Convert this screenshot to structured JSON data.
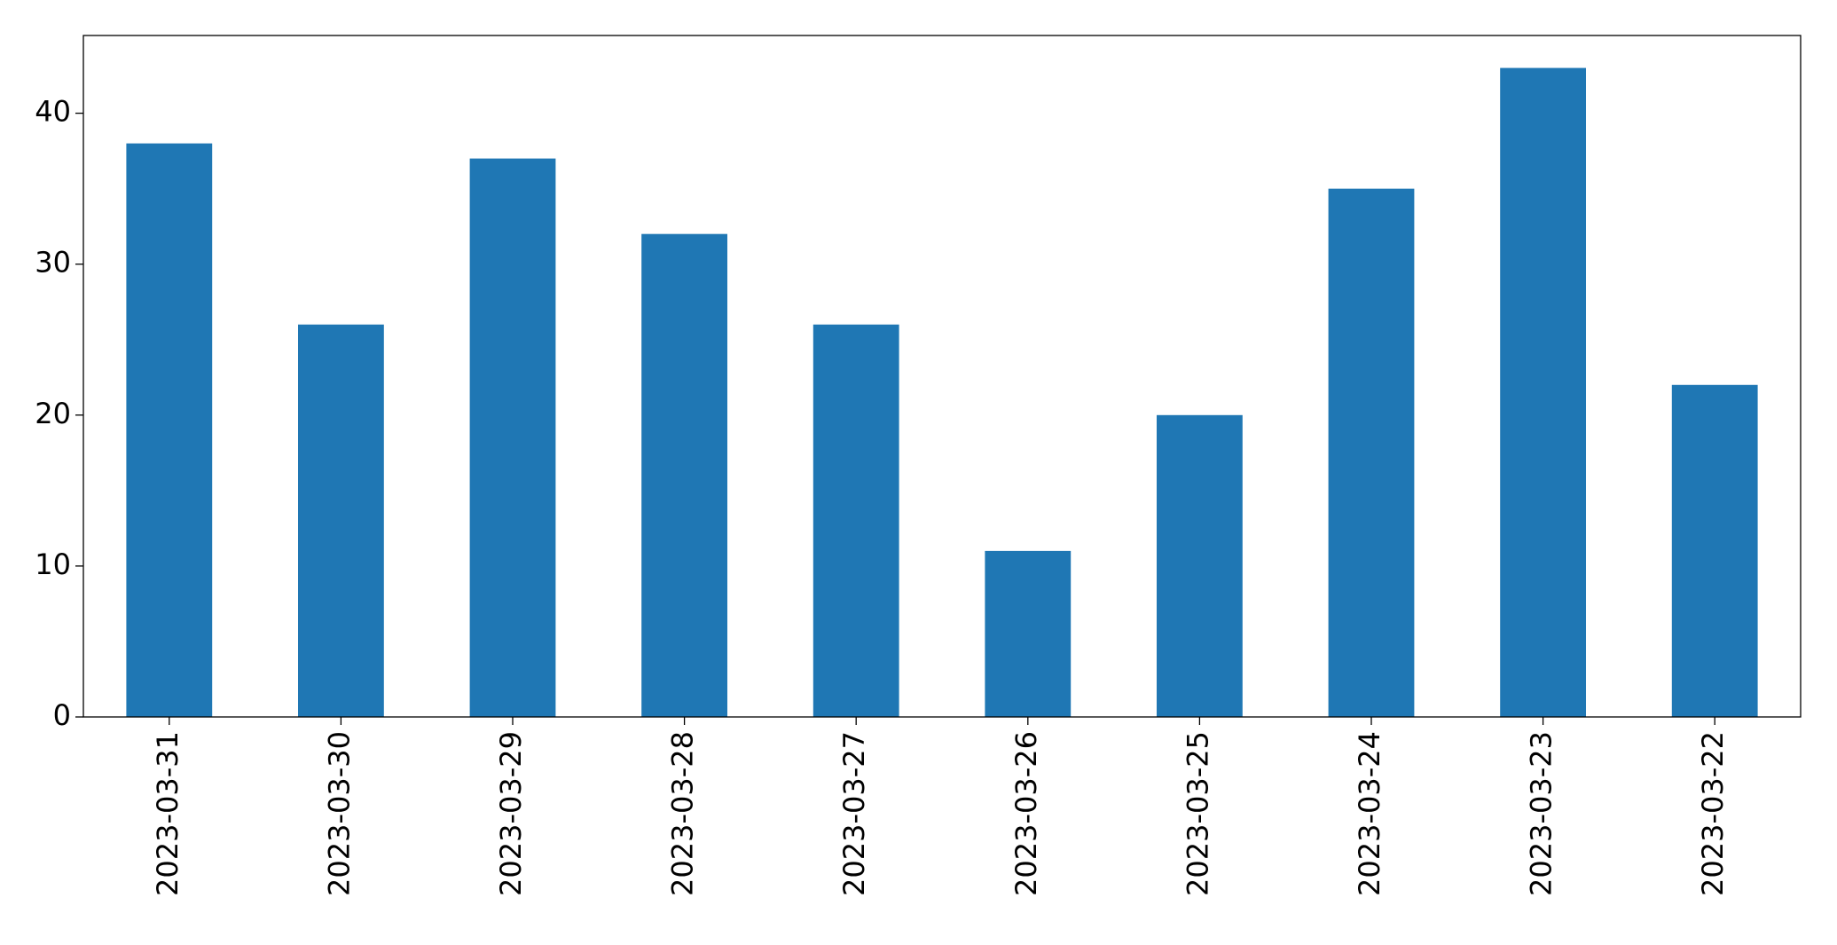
{
  "chart_data": {
    "type": "bar",
    "categories": [
      "2023-03-31",
      "2023-03-30",
      "2023-03-29",
      "2023-03-28",
      "2023-03-27",
      "2023-03-26",
      "2023-03-25",
      "2023-03-24",
      "2023-03-23",
      "2023-03-22"
    ],
    "values": [
      38,
      26,
      37,
      32,
      26,
      11,
      20,
      35,
      43,
      22
    ],
    "color": "#1f77b4",
    "ylim": [
      0,
      45.15
    ],
    "yticks": [
      0,
      10,
      20,
      30,
      40
    ],
    "grid": false
  }
}
